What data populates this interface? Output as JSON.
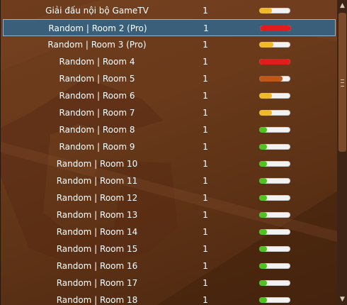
{
  "colors": {
    "load_low": "#4fc31f",
    "load_medium": "#f0b92a",
    "load_high": "#e01c1c",
    "load_medium_high": "#c0581a"
  },
  "rooms": [
    {
      "name": "Giải đấu nội bộ GameTV",
      "count": "1",
      "load": 0.4,
      "level": "medium",
      "selected": false
    },
    {
      "name": "Random | Room 2 (Pro)",
      "count": "1",
      "load": 1.0,
      "level": "high",
      "selected": true
    },
    {
      "name": "Random | Room 3 (Pro)",
      "count": "1",
      "load": 0.45,
      "level": "medium",
      "selected": false
    },
    {
      "name": "Random | Room 4",
      "count": "1",
      "load": 1.0,
      "level": "high",
      "selected": false
    },
    {
      "name": "Random | Room 5",
      "count": "1",
      "load": 0.75,
      "level": "medium_high",
      "selected": false
    },
    {
      "name": "Random | Room 6",
      "count": "1",
      "load": 0.42,
      "level": "medium",
      "selected": false
    },
    {
      "name": "Random | Room 7",
      "count": "1",
      "load": 0.42,
      "level": "medium",
      "selected": false
    },
    {
      "name": "Random | Room 8",
      "count": "1",
      "load": 0.25,
      "level": "low",
      "selected": false
    },
    {
      "name": "Random | Room 9",
      "count": "1",
      "load": 0.25,
      "level": "low",
      "selected": false
    },
    {
      "name": "Random | Room 10",
      "count": "1",
      "load": 0.25,
      "level": "low",
      "selected": false
    },
    {
      "name": "Random | Room 11",
      "count": "1",
      "load": 0.25,
      "level": "low",
      "selected": false
    },
    {
      "name": "Random | Room 12",
      "count": "1",
      "load": 0.25,
      "level": "low",
      "selected": false
    },
    {
      "name": "Random | Room 13",
      "count": "1",
      "load": 0.25,
      "level": "low",
      "selected": false
    },
    {
      "name": "Random | Room 14",
      "count": "1",
      "load": 0.25,
      "level": "low",
      "selected": false
    },
    {
      "name": "Random | Room 15",
      "count": "1",
      "load": 0.25,
      "level": "low",
      "selected": false
    },
    {
      "name": "Random | Room 16",
      "count": "1",
      "load": 0.25,
      "level": "low",
      "selected": false
    },
    {
      "name": "Random | Room 17",
      "count": "1",
      "load": 0.25,
      "level": "low",
      "selected": false
    },
    {
      "name": "Random | Room 18",
      "count": "1",
      "load": 0.25,
      "level": "low",
      "selected": false
    }
  ],
  "scrollbar": {
    "up_icon": "triangle-up-icon",
    "down_icon": "triangle-down-icon",
    "thumb_position": 0.0
  }
}
